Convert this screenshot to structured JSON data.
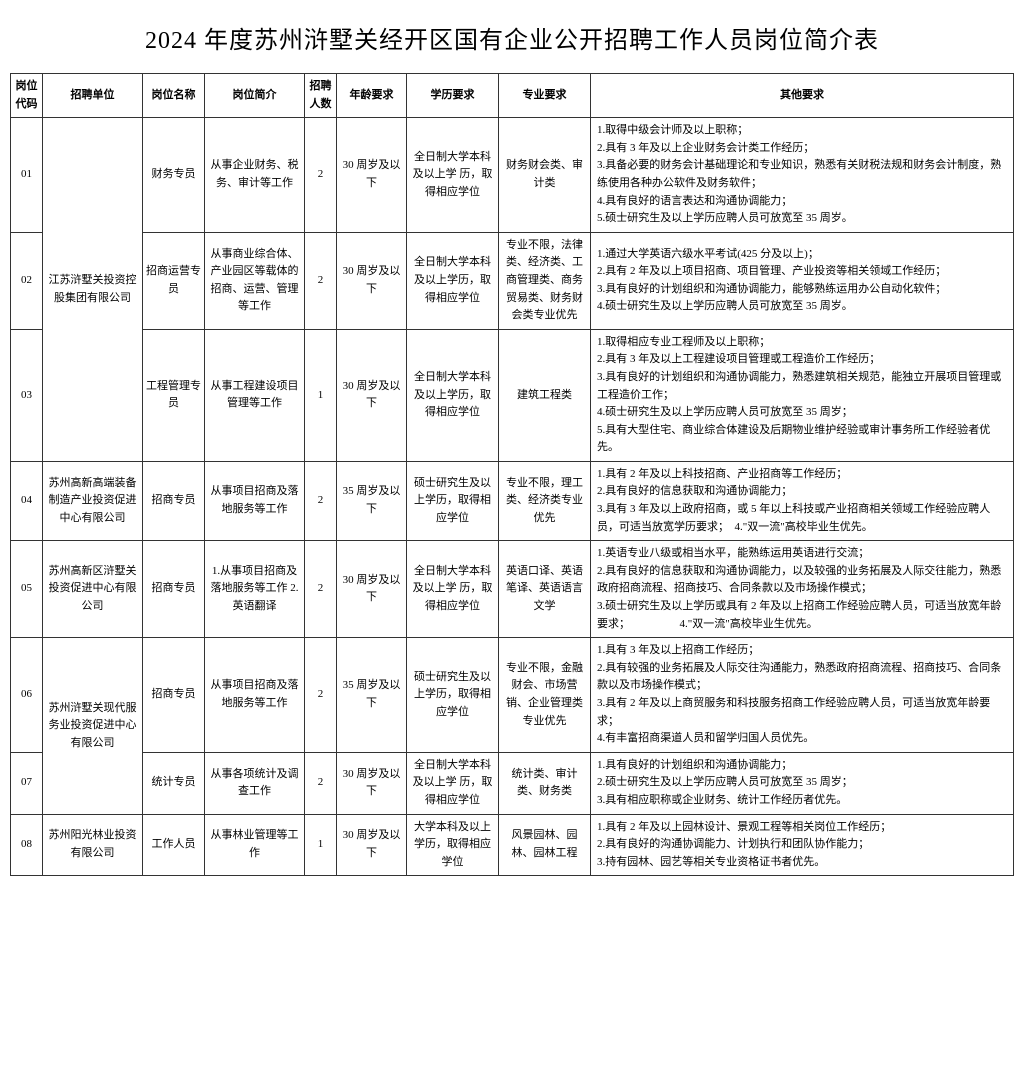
{
  "title": "2024 年度苏州浒墅关经开区国有企业公开招聘工作人员岗位简介表",
  "headers": {
    "code": "岗位代码",
    "unit": "招聘单位",
    "posname": "岗位名称",
    "desc": "岗位简介",
    "count": "招聘人数",
    "age": "年龄要求",
    "edu": "学历要求",
    "major": "专业要求",
    "other": "其他要求"
  },
  "rows": [
    {
      "code": "01",
      "unit": "江苏浒墅关投资控股集团有限公司",
      "posname": "财务专员",
      "desc": "从事企业财务、税务、审计等工作",
      "count": "2",
      "age": "30 周岁及以下",
      "edu": "全日制大学本科及以上学 历，取得相应学位",
      "major": "财务财会类、审计类",
      "other": "1.取得中级会计师及以上职称；\n2.具有 3 年及以上企业财务会计类工作经历；\n3.具备必要的财务会计基础理论和专业知识，熟悉有关财税法规和财务会计制度，熟练使用各种办公软件及财务软件；\n4.具有良好的语言表达和沟通协调能力；\n5.硕士研究生及以上学历应聘人员可放宽至 35 周岁。"
    },
    {
      "code": "02",
      "posname": "招商运营专员",
      "desc": "从事商业综合体、产业园区等载体的招商、运营、管理等工作",
      "count": "2",
      "age": "30 周岁及以下",
      "edu": "全日制大学本科及以上学历，取得相应学位",
      "major": "专业不限，法律类、经济类、工商管理类、商务贸易类、财务财会类专业优先",
      "other": "1.通过大学英语六级水平考试(425 分及以上)；\n2.具有 2 年及以上项目招商、项目管理、产业投资等相关领域工作经历；\n3.具有良好的计划组织和沟通协调能力，能够熟练运用办公自动化软件；\n4.硕士研究生及以上学历应聘人员可放宽至 35 周岁。"
    },
    {
      "code": "03",
      "posname": "工程管理专员",
      "desc": "从事工程建设项目管理等工作",
      "count": "1",
      "age": "30 周岁及以下",
      "edu": "全日制大学本科及以上学历，取得相应学位",
      "major": "建筑工程类",
      "other": "1.取得相应专业工程师及以上职称；\n2.具有 3 年及以上工程建设项目管理或工程造价工作经历；\n3.具有良好的计划组织和沟通协调能力，熟悉建筑相关规范，能独立开展项目管理或工程造价工作；\n4.硕士研究生及以上学历应聘人员可放宽至 35 周岁；\n5.具有大型住宅、商业综合体建设及后期物业维护经验或审计事务所工作经验者优先。"
    },
    {
      "code": "04",
      "unit": "苏州高新高端装备制造产业投资促进中心有限公司",
      "posname": "招商专员",
      "desc": "从事项目招商及落地服务等工作",
      "count": "2",
      "age": "35 周岁及以下",
      "edu": "硕士研究生及以上学历，取得相应学位",
      "major": "专业不限，理工类、经济类专业优先",
      "other": "1.具有 2 年及以上科技招商、产业招商等工作经历；\n2.具有良好的信息获取和沟通协调能力；\n3.具有 3 年及以上政府招商，或 5 年以上科技或产业招商相关领域工作经验应聘人员，可适当放宽学历要求；　4.\"双一流\"高校毕业生优先。"
    },
    {
      "code": "05",
      "unit": "苏州高新区浒墅关投资促进中心有限公司",
      "posname": "招商专员",
      "desc": "1.从事项目招商及落地服务等工作 2.英语翻译",
      "count": "2",
      "age": "30 周岁及以下",
      "edu": "全日制大学本科及以上学 历，取得相应学位",
      "major": "英语口译、英语笔译、英语语言文学",
      "other": "1.英语专业八级或相当水平，能熟练运用英语进行交流；\n2.具有良好的信息获取和沟通协调能力，以及较强的业务拓展及人际交往能力，熟悉政府招商流程、招商技巧、合同条款以及市场操作模式；\n3.硕士研究生及以上学历或具有 2 年及以上招商工作经验应聘人员，可适当放宽年龄要求；　　　　　4.\"双一流\"高校毕业生优先。"
    },
    {
      "code": "06",
      "unit": "苏州浒墅关现代服务业投资促进中心有限公司",
      "posname": "招商专员",
      "desc": "从事项目招商及落地服务等工作",
      "count": "2",
      "age": "35 周岁及以下",
      "edu": "硕士研究生及以上学历，取得相应学位",
      "major": "专业不限，金融财会、市场营销、企业管理类专业优先",
      "other": "1.具有 3 年及以上招商工作经历；\n2.具有较强的业务拓展及人际交往沟通能力，熟悉政府招商流程、招商技巧、合同条款以及市场操作模式；\n3.具有 2 年及以上商贸服务和科技服务招商工作经验应聘人员，可适当放宽年龄要求；\n4.有丰富招商渠道人员和留学归国人员优先。"
    },
    {
      "code": "07",
      "posname": "统计专员",
      "desc": "从事各项统计及调查工作",
      "count": "2",
      "age": "30 周岁及以下",
      "edu": "全日制大学本科及以上学 历，取得相应学位",
      "major": "统计类、审计类、财务类",
      "other": "1.具有良好的计划组织和沟通协调能力；\n2.硕士研究生及以上学历应聘人员可放宽至 35 周岁；\n3.具有相应职称或企业财务、统计工作经历者优先。"
    },
    {
      "code": "08",
      "unit": "苏州阳光林业投资有限公司",
      "posname": "工作人员",
      "desc": "从事林业管理等工作",
      "count": "1",
      "age": "30 周岁及以下",
      "edu": "大学本科及以上学历，取得相应学位",
      "major": "风景园林、园林、园林工程",
      "other": "1.具有 2 年及以上园林设计、景观工程等相关岗位工作经历；\n2.具有良好的沟通协调能力、计划执行和团队协作能力；\n3.持有园林、园艺等相关专业资格证书者优先。"
    }
  ]
}
